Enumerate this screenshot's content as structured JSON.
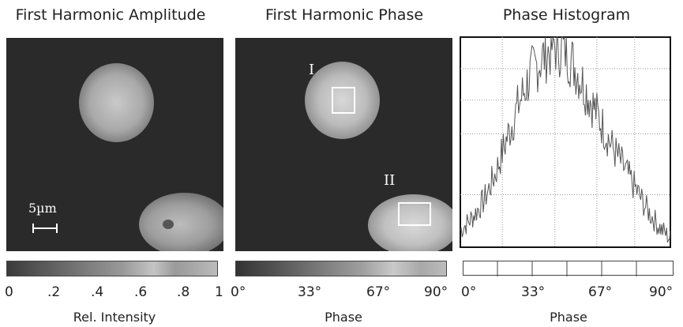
{
  "panels": {
    "amplitude": {
      "title": "First Harmonic Amplitude",
      "scale_label": "5µm",
      "ticks": [
        "0",
        ".2",
        ".4",
        ".6",
        ".8",
        "1"
      ],
      "caption": "Rel. Intensity"
    },
    "phase": {
      "title": "First Harmonic Phase",
      "roi_labels": [
        "I",
        "II"
      ],
      "ticks": [
        "0°",
        "33°",
        "67°",
        "90°"
      ],
      "caption": "Phase"
    },
    "histogram": {
      "title": "Phase Histogram",
      "ticks": [
        "0°",
        "33°",
        "67°",
        "90°"
      ],
      "caption": "Phase"
    }
  },
  "chart_data": {
    "type": "line",
    "title": "Phase Histogram",
    "xlabel": "Phase",
    "xlim": [
      0,
      90
    ],
    "x": [
      0,
      5,
      10,
      15,
      20,
      25,
      30,
      35,
      40,
      45,
      50,
      55,
      60,
      65,
      70,
      75,
      80,
      85,
      90
    ],
    "y": [
      0.08,
      0.14,
      0.22,
      0.35,
      0.52,
      0.68,
      0.82,
      0.9,
      0.96,
      0.94,
      0.84,
      0.72,
      0.6,
      0.48,
      0.38,
      0.28,
      0.18,
      0.1,
      0.04
    ],
    "ylim": [
      0,
      1
    ],
    "grid": true
  },
  "colors": {
    "image_background": "#2a2a2a",
    "roi": "#ffffff",
    "histogram_line": "#555555",
    "grid": "#9a9a9a"
  }
}
